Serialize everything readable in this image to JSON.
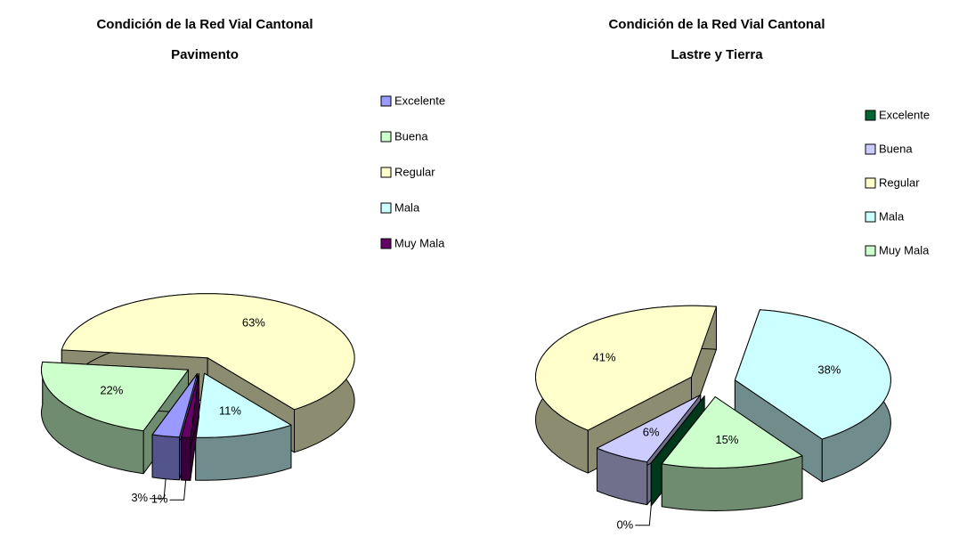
{
  "chart_data": [
    {
      "type": "pie",
      "title": "Condición de la Red Vial Cantonal",
      "subtitle": "Pavimento",
      "categories": [
        "Excelente",
        "Buena",
        "Regular",
        "Mala",
        "Muy Mala"
      ],
      "values": [
        3,
        22,
        63,
        11,
        1
      ],
      "value_labels": [
        "3%",
        "22%",
        "63%",
        "11%",
        "1%"
      ],
      "colors": [
        "#9999ff",
        "#ccffcc",
        "#ffffcc",
        "#ccffff",
        "#660066"
      ],
      "legend": "upper right"
    },
    {
      "type": "pie",
      "title": "Condición de la Red Vial Cantonal",
      "subtitle": "Lastre y Tierra",
      "categories": [
        "Excelente",
        "Buena",
        "Regular",
        "Mala",
        "Muy Mala"
      ],
      "values": [
        0,
        6,
        41,
        38,
        15
      ],
      "value_labels": [
        "0%",
        "6%",
        "41%",
        "38%",
        "15%"
      ],
      "colors": [
        "#006633",
        "#ccccff",
        "#ffffcc",
        "#ccffff",
        "#ccffcc"
      ],
      "legend": "upper right"
    }
  ]
}
